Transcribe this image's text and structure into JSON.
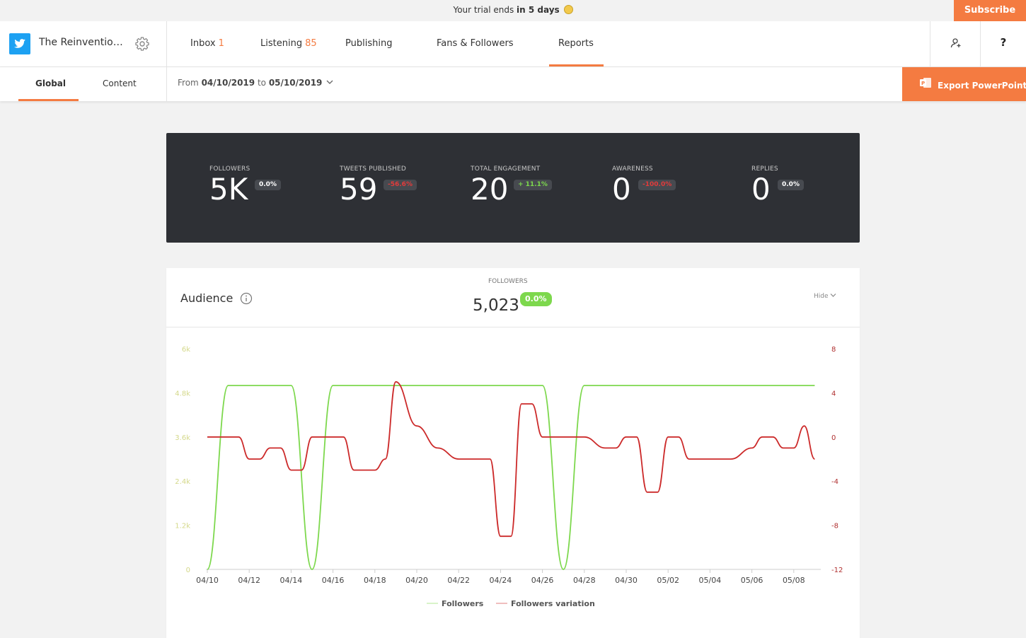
{
  "trial": {
    "prefix": "Your trial ends",
    "highlight": "in 5 days"
  },
  "subscribe_label": "Subscribe",
  "account": {
    "name": "The Reinvention..."
  },
  "nav": {
    "inbox": {
      "label": "Inbox",
      "count": "1"
    },
    "listening": {
      "label": "Listening",
      "count": "85"
    },
    "publishing": "Publishing",
    "fans": "Fans & Followers",
    "reports": "Reports"
  },
  "header_help": "?",
  "subnav": {
    "global": "Global",
    "content": "Content"
  },
  "daterange": {
    "from_label": "From",
    "from": "04/10/2019",
    "to_label": "to",
    "to": "05/10/2019"
  },
  "export_label": "Export PowerPoint",
  "stats": [
    {
      "label": "FOLLOWERS",
      "value": "5K",
      "change": "0.0%",
      "trend": "neutral"
    },
    {
      "label": "TWEETS PUBLISHED",
      "value": "59",
      "change": "-56.6%",
      "trend": "down"
    },
    {
      "label": "TOTAL ENGAGEMENT",
      "value": "20",
      "change": "+ 11.1%",
      "trend": "up"
    },
    {
      "label": "AWARENESS",
      "value": "0",
      "change": "-100.0%",
      "trend": "down"
    },
    {
      "label": "REPLIES",
      "value": "0",
      "change": "0.0%",
      "trend": "neutral"
    }
  ],
  "colors": {
    "accent": "#f47b41",
    "twitter": "#1da1f2",
    "panel": "#2e3035",
    "followers_line": "#7dd84d",
    "variation_line": "#cc2a2a",
    "up": "#7dd84d",
    "down": "#e23b3b",
    "neutral": "#ffffff"
  },
  "audience": {
    "title": "Audience",
    "followers_label": "FOLLOWERS",
    "followers_value": "5,023",
    "followers_change": "0.0%",
    "hide_label": "Hide"
  },
  "chart_data": {
    "type": "line",
    "x_labels": [
      "04/10",
      "04/12",
      "04/14",
      "04/16",
      "04/18",
      "04/20",
      "04/22",
      "04/24",
      "04/26",
      "04/28",
      "04/30",
      "05/02",
      "05/04",
      "05/06",
      "05/08"
    ],
    "y_left_ticks": [
      "0",
      "1.2k",
      "2.4k",
      "3.6k",
      "4.8k",
      "6k"
    ],
    "y_right_ticks": [
      "-12",
      "-8",
      "-4",
      "0",
      "4",
      "8"
    ],
    "y_left_range": [
      0,
      6000
    ],
    "y_right_range": [
      -12,
      8
    ],
    "series": [
      {
        "name": "Followers",
        "axis": "left",
        "color": "#7dd84d",
        "x": [
          "04/10",
          "04/11",
          "04/12",
          "04/13",
          "04/14",
          "04/15",
          "04/16",
          "04/17",
          "04/18",
          "04/19",
          "04/20",
          "04/21",
          "04/22",
          "04/23",
          "04/24",
          "04/25",
          "04/26",
          "04/27",
          "04/28",
          "04/29",
          "04/30",
          "05/01",
          "05/02",
          "05/03",
          "05/04",
          "05/05",
          "05/06",
          "05/07",
          "05/08",
          "05/09"
        ],
        "values": [
          0,
          5000,
          5000,
          5000,
          5000,
          0,
          5000,
          5000,
          5000,
          5000,
          5000,
          5000,
          5000,
          5000,
          5000,
          5000,
          5000,
          0,
          5000,
          5000,
          5000,
          5000,
          5000,
          5000,
          5000,
          5000,
          5000,
          5000,
          5000,
          5000
        ]
      },
      {
        "name": "Followers variation",
        "axis": "right",
        "color": "#cc2a2a",
        "x": [
          "04/10",
          "04/11",
          "04/11.5",
          "04/12",
          "04/12.5",
          "04/13",
          "04/13.5",
          "04/14",
          "04/14.5",
          "04/15",
          "04/16",
          "04/16.5",
          "04/17",
          "04/17.5",
          "04/18",
          "04/18.5",
          "04/19",
          "04/20",
          "04/21",
          "04/22",
          "04/23",
          "04/23.5",
          "04/24",
          "04/24.5",
          "04/25",
          "04/25.5",
          "04/26",
          "04/27",
          "04/28",
          "04/29",
          "04/29.5",
          "04/30",
          "04/30.5",
          "05/01",
          "05/01.5",
          "05/02",
          "05/02.5",
          "05/03",
          "05/04",
          "05/04.5",
          "05/05",
          "05/06",
          "05/06.5",
          "05/07",
          "05/07.5",
          "05/08",
          "05/08.5",
          "05/09"
        ],
        "values": [
          0,
          0,
          0,
          -2,
          -2,
          -1,
          -1,
          -3,
          -3,
          0,
          0,
          0,
          -3,
          -3,
          -3,
          -2,
          5,
          1,
          -1,
          -2,
          -2,
          -2,
          -9,
          -9,
          3,
          3,
          0,
          0,
          0,
          -1,
          -1,
          0,
          0,
          -5,
          -5,
          0,
          0,
          -2,
          -2,
          -2,
          -2,
          -1,
          0,
          0,
          -1,
          -1,
          1,
          -2
        ]
      }
    ],
    "legend": [
      "Followers",
      "Followers variation"
    ],
    "legend_position": "bottom"
  }
}
